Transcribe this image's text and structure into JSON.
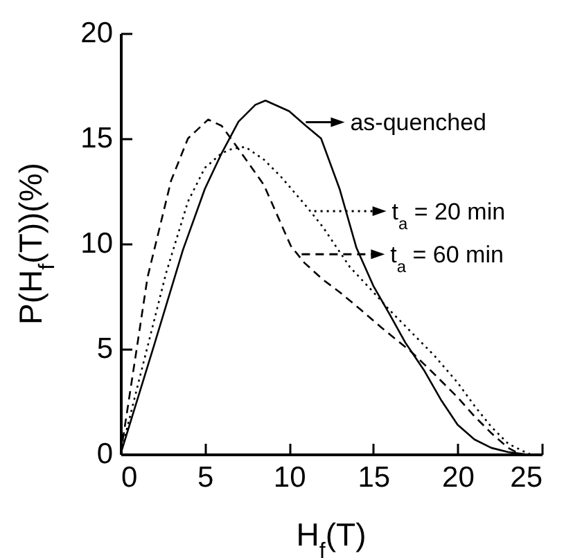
{
  "chart_data": {
    "type": "line",
    "xlabel": "H$_{f}$(T)",
    "ylabel": "P(H$_{f}$(T))(%)",
    "xlim": [
      0,
      25
    ],
    "xticks": [
      0,
      5,
      10,
      15,
      20,
      25
    ],
    "ylim": [
      0,
      20
    ],
    "yticks": [
      0,
      5,
      10,
      15,
      20
    ],
    "legend": "top right",
    "series": [
      {
        "name": "as-quenched",
        "color": "#000000",
        "line_style": "solid",
        "x": [
          0,
          2,
          3.7,
          5,
          6,
          7,
          8,
          8.6,
          10,
          11,
          11.9,
          13,
          14,
          15,
          16,
          16.9,
          18,
          19,
          20,
          21,
          22,
          23,
          24
        ],
        "values": [
          0,
          5.2,
          9.7,
          12.6,
          14.3,
          15.8,
          16.6,
          16.8,
          16.3,
          15.6,
          15,
          12.6,
          9.8,
          8,
          6.6,
          5.3,
          4,
          2.6,
          1.4,
          0.7,
          0.3,
          0.1,
          0
        ]
      },
      {
        "name": "t$_{a}$ = 20 min",
        "color": "#000000",
        "line_style": "dotted",
        "x": [
          0,
          1,
          2.7,
          4,
          5,
          6,
          6.6,
          7.4,
          8.5,
          9.5,
          11,
          12,
          13.6,
          15,
          15.9,
          17,
          18.6,
          20,
          21,
          22,
          23,
          24,
          24.3
        ],
        "values": [
          0,
          3.2,
          8.6,
          12,
          13.6,
          14.3,
          14.5,
          14.6,
          14,
          13.2,
          11.8,
          10.8,
          8.9,
          7.7,
          6.9,
          6,
          4.7,
          3.4,
          2.3,
          1.3,
          0.5,
          0.1,
          0
        ]
      },
      {
        "name": "t$_{a}$ = 60 min",
        "color": "#000000",
        "line_style": "dashed",
        "x": [
          0,
          0.9,
          1.6,
          3,
          4,
          5.2,
          6,
          7,
          8.5,
          10.1,
          10.9,
          12,
          13,
          14.2,
          15.5,
          17.2,
          18.5,
          20,
          21,
          22,
          23,
          23.7
        ],
        "values": [
          0,
          4.7,
          8.4,
          13,
          15,
          15.9,
          15.6,
          14.5,
          12.8,
          9.9,
          9.1,
          8.3,
          7.7,
          6.9,
          6,
          4.9,
          3.9,
          2.7,
          1.8,
          1,
          0.3,
          0
        ]
      }
    ]
  }
}
